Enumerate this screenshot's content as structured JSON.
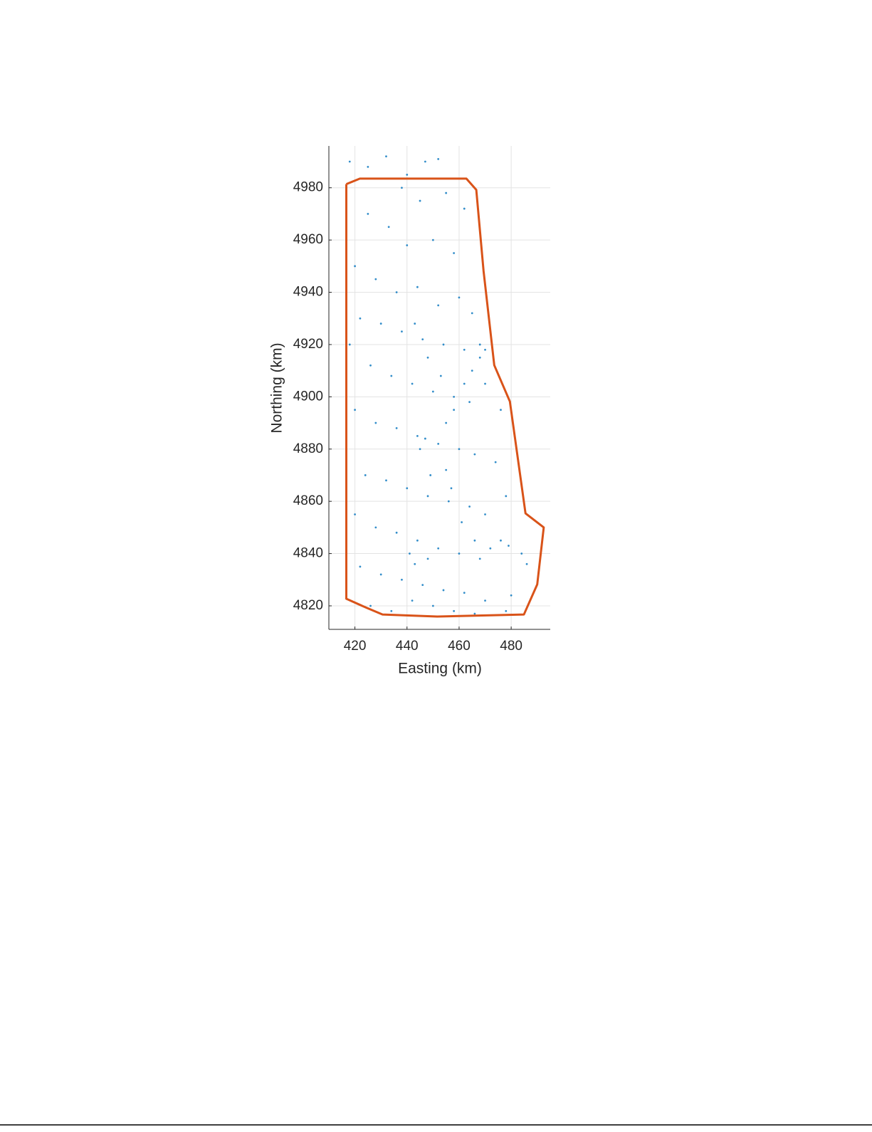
{
  "chart_data": {
    "type": "scatter",
    "xlabel": "Easting (km)",
    "ylabel": "Northing (km)",
    "xlim": [
      410,
      495
    ],
    "ylim": [
      4811,
      4996
    ],
    "xticks": [
      420,
      440,
      460,
      480
    ],
    "yticks": [
      4820,
      4840,
      4860,
      4880,
      4900,
      4920,
      4940,
      4960,
      4980
    ],
    "grid": true,
    "series": [
      {
        "color": "#0072bd",
        "marker": "dot",
        "x": [
          418,
          425,
          432,
          440,
          447,
          452,
          438,
          445,
          455,
          462,
          425,
          433,
          440,
          450,
          458,
          420,
          428,
          436,
          444,
          452,
          460,
          465,
          422,
          430,
          438,
          446,
          454,
          462,
          468,
          418,
          426,
          434,
          442,
          450,
          458,
          464,
          470,
          476,
          420,
          428,
          436,
          444,
          452,
          460,
          466,
          474,
          424,
          432,
          440,
          448,
          456,
          464,
          470,
          478,
          420,
          428,
          436,
          444,
          452,
          460,
          468,
          476,
          484,
          422,
          430,
          438,
          446,
          454,
          462,
          470,
          480,
          486,
          426,
          434,
          442,
          450,
          458,
          466,
          478,
          445,
          447,
          449,
          455,
          458,
          462,
          465,
          468,
          470,
          457,
          461,
          466,
          472,
          479,
          441,
          443,
          448,
          455,
          453,
          448,
          443
        ],
        "y": [
          4990,
          4988,
          4992,
          4985,
          4990,
          4991,
          4980,
          4975,
          4978,
          4972,
          4970,
          4965,
          4958,
          4960,
          4955,
          4950,
          4945,
          4940,
          4942,
          4935,
          4938,
          4932,
          4930,
          4928,
          4925,
          4922,
          4920,
          4918,
          4915,
          4920,
          4912,
          4908,
          4905,
          4902,
          4900,
          4898,
          4905,
          4895,
          4895,
          4890,
          4888,
          4885,
          4882,
          4880,
          4878,
          4875,
          4870,
          4868,
          4865,
          4862,
          4860,
          4858,
          4855,
          4862,
          4855,
          4850,
          4848,
          4845,
          4842,
          4840,
          4838,
          4845,
          4840,
          4835,
          4832,
          4830,
          4828,
          4826,
          4825,
          4822,
          4824,
          4836,
          4820,
          4818,
          4822,
          4820,
          4818,
          4817,
          4818,
          4880,
          4884,
          4870,
          4890,
          4895,
          4905,
          4910,
          4920,
          4918,
          4865,
          4852,
          4845,
          4842,
          4843,
          4840,
          4836,
          4838,
          4872,
          4908,
          4915,
          4928
        ]
      },
      {
        "color": "#d95319",
        "marker": "none",
        "line": true,
        "x": [
          416.7,
          421.9,
          462.8,
          466.6,
          469.4,
          473.5,
          479.5,
          485.5,
          492.5,
          490,
          484.9,
          451.6,
          430.6,
          424.6,
          416.7,
          416.7
        ],
        "y": [
          4981.4,
          4983.5,
          4983.5,
          4979.2,
          4948.1,
          4912.1,
          4898.2,
          4855.4,
          4850,
          4828.2,
          4816.7,
          4815.9,
          4816.7,
          4819.2,
          4822.7,
          4981.4
        ]
      }
    ]
  }
}
